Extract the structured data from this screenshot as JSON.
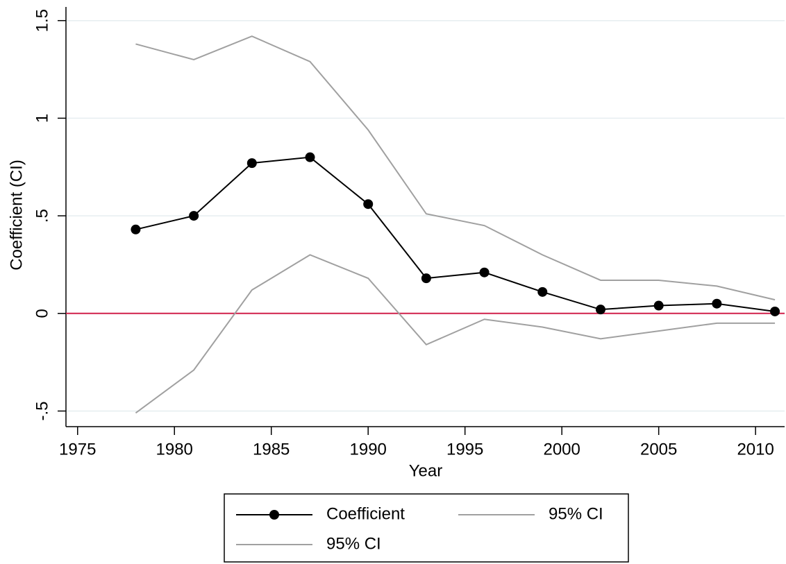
{
  "chart_data": {
    "type": "line",
    "xlabel": "Year",
    "ylabel": "Coefficient (CI)",
    "x": [
      1978,
      1981,
      1984,
      1987,
      1990,
      1993,
      1996,
      1999,
      2002,
      2005,
      2008,
      2011
    ],
    "series": [
      {
        "name": "Coefficient",
        "color": "#000000",
        "markers": true,
        "values": [
          0.43,
          0.5,
          0.77,
          0.8,
          0.56,
          0.18,
          0.21,
          0.11,
          0.02,
          0.04,
          0.05,
          0.01
        ]
      },
      {
        "name": "95% CI",
        "color": "#a0a0a0",
        "markers": false,
        "values": [
          1.38,
          1.3,
          1.42,
          1.29,
          0.94,
          0.51,
          0.45,
          0.3,
          0.17,
          0.17,
          0.14,
          0.07
        ]
      },
      {
        "name": "95% CI",
        "color": "#a0a0a0",
        "markers": false,
        "values": [
          -0.51,
          -0.29,
          0.12,
          0.3,
          0.18,
          -0.16,
          -0.03,
          -0.07,
          -0.13,
          -0.09,
          -0.05,
          -0.05
        ]
      }
    ],
    "xlim": [
      1974.4,
      2011.5
    ],
    "xticks": [
      1975,
      1980,
      1985,
      1990,
      1995,
      2000,
      2005,
      2010
    ],
    "ylim": [
      -0.58,
      1.57
    ],
    "yticks": [
      {
        "value": -0.5,
        "label": "-.5"
      },
      0,
      {
        "value": 0.5,
        "label": ".5"
      },
      1,
      1.5
    ],
    "grid": true,
    "grid_color": "#e6eef0",
    "hline": 0,
    "hline_color": "#d0204a",
    "legend": "bottom"
  }
}
